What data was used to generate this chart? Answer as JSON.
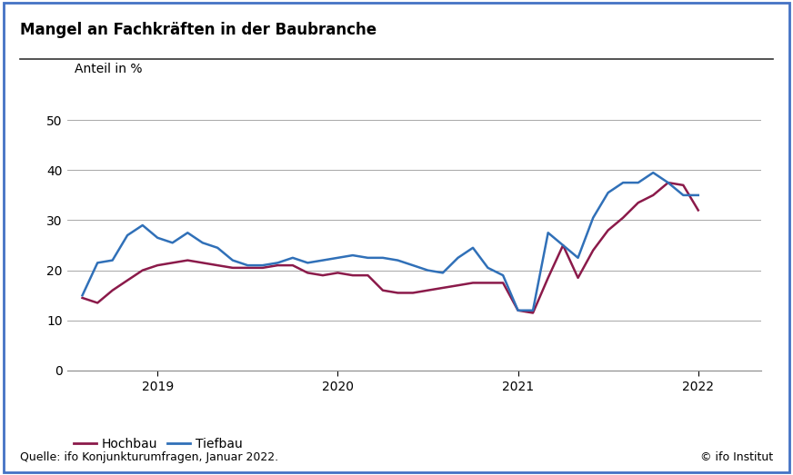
{
  "title": "Mangel an Fachkräften in der Baubranche",
  "ylabel": "Anteil in %",
  "source": "Quelle: ifo Konjunkturumfragen, Januar 2022.",
  "copyright": "© ifo Institut",
  "ylim": [
    0,
    55
  ],
  "yticks": [
    0,
    10,
    20,
    30,
    40,
    50
  ],
  "background_color": "#ffffff",
  "border_color": "#4472c4",
  "hochbau_color": "#8B1A4A",
  "tiefbau_color": "#3070B8",
  "hochbau_label": "Hochbau",
  "tiefbau_label": "Tiefbau",
  "hochbau_x": [
    2018.583,
    2018.667,
    2018.75,
    2018.833,
    2018.917,
    2019.0,
    2019.083,
    2019.167,
    2019.25,
    2019.333,
    2019.417,
    2019.5,
    2019.583,
    2019.667,
    2019.75,
    2019.833,
    2019.917,
    2020.0,
    2020.083,
    2020.167,
    2020.25,
    2020.333,
    2020.417,
    2020.5,
    2020.583,
    2020.667,
    2020.75,
    2020.833,
    2020.917,
    2021.0,
    2021.083,
    2021.167,
    2021.25,
    2021.333,
    2021.417,
    2021.5,
    2021.583,
    2021.667,
    2021.75,
    2021.833,
    2021.917,
    2022.0
  ],
  "hochbau_y": [
    14.5,
    13.5,
    16.0,
    18.0,
    20.0,
    21.0,
    21.5,
    22.0,
    21.5,
    21.0,
    20.5,
    20.5,
    20.5,
    21.0,
    21.0,
    19.5,
    19.0,
    19.5,
    19.0,
    19.0,
    16.0,
    15.5,
    15.5,
    16.0,
    16.5,
    17.0,
    17.5,
    17.5,
    17.5,
    12.0,
    11.5,
    18.5,
    25.0,
    18.5,
    24.0,
    28.0,
    30.5,
    33.5,
    35.0,
    37.5,
    37.0,
    32.0
  ],
  "tiefbau_x": [
    2018.583,
    2018.667,
    2018.75,
    2018.833,
    2018.917,
    2019.0,
    2019.083,
    2019.167,
    2019.25,
    2019.333,
    2019.417,
    2019.5,
    2019.583,
    2019.667,
    2019.75,
    2019.833,
    2019.917,
    2020.0,
    2020.083,
    2020.167,
    2020.25,
    2020.333,
    2020.417,
    2020.5,
    2020.583,
    2020.667,
    2020.75,
    2020.833,
    2020.917,
    2021.0,
    2021.083,
    2021.167,
    2021.25,
    2021.333,
    2021.417,
    2021.5,
    2021.583,
    2021.667,
    2021.75,
    2021.833,
    2021.917,
    2022.0
  ],
  "tiefbau_y": [
    15.0,
    21.5,
    22.0,
    27.0,
    29.0,
    26.5,
    25.5,
    27.5,
    25.5,
    24.5,
    22.0,
    21.0,
    21.0,
    21.5,
    22.5,
    21.5,
    22.0,
    22.5,
    23.0,
    22.5,
    22.5,
    22.0,
    21.0,
    20.0,
    19.5,
    22.5,
    24.5,
    20.5,
    19.0,
    12.0,
    12.0,
    27.5,
    25.0,
    22.5,
    30.5,
    35.5,
    37.5,
    37.5,
    39.5,
    37.5,
    35.0,
    35.0
  ],
  "xticks": [
    2019.0,
    2020.0,
    2021.0,
    2022.0
  ],
  "xtick_labels": [
    "2019",
    "2020",
    "2021",
    "2022"
  ],
  "xlim": [
    2018.5,
    2022.35
  ],
  "title_fontsize": 12,
  "label_fontsize": 10,
  "tick_fontsize": 10,
  "source_fontsize": 9
}
